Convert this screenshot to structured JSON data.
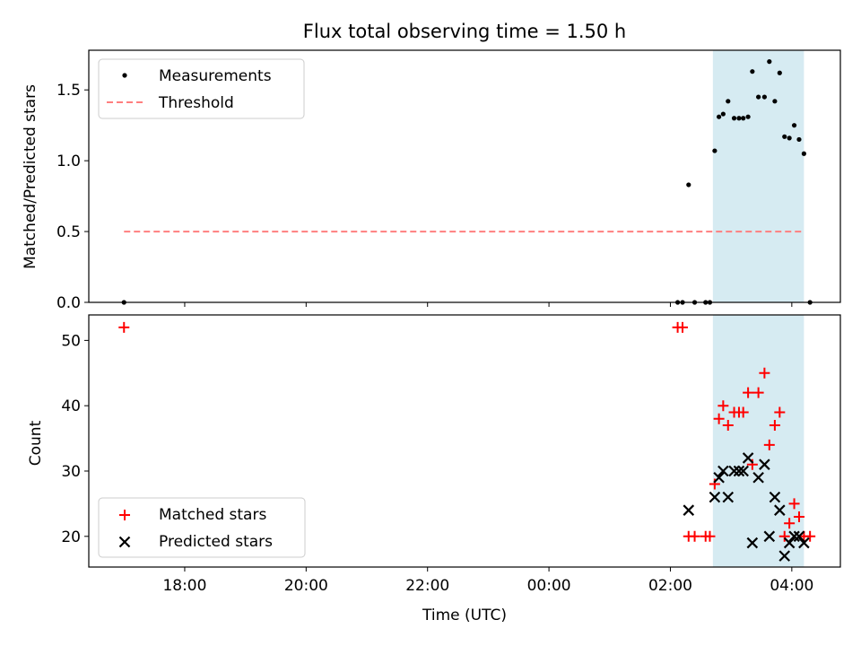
{
  "chart_data": [
    {
      "type": "scatter",
      "title": "Flux total observing time = 1.50 h",
      "ylabel": "Matched/Predicted stars",
      "xlim_hours": [
        16.42,
        28.8
      ],
      "ylim": [
        0,
        1.78
      ],
      "yticks": [
        0.0,
        0.5,
        1.0,
        1.5
      ],
      "ytick_labels": [
        "0.0",
        "0.5",
        "1.0",
        "1.5"
      ],
      "shaded_span_hours": [
        26.7,
        28.2
      ],
      "shade_color": "#add8e6",
      "legend_position": "upper left",
      "series": [
        {
          "name": "Measurements",
          "marker": "dot",
          "color": "#000000",
          "points": [
            [
              17.0,
              0.0
            ],
            [
              26.12,
              0.0
            ],
            [
              26.2,
              0.0
            ],
            [
              26.4,
              0.0
            ],
            [
              26.58,
              0.0
            ],
            [
              26.65,
              0.0
            ],
            [
              26.3,
              0.83
            ],
            [
              26.73,
              1.07
            ],
            [
              26.8,
              1.31
            ],
            [
              26.87,
              1.33
            ],
            [
              26.95,
              1.42
            ],
            [
              27.05,
              1.3
            ],
            [
              27.13,
              1.3
            ],
            [
              27.2,
              1.3
            ],
            [
              27.28,
              1.31
            ],
            [
              27.35,
              1.63
            ],
            [
              27.45,
              1.45
            ],
            [
              27.55,
              1.45
            ],
            [
              27.63,
              1.7
            ],
            [
              27.72,
              1.42
            ],
            [
              27.8,
              1.62
            ],
            [
              27.88,
              1.17
            ],
            [
              27.96,
              1.16
            ],
            [
              28.04,
              1.25
            ],
            [
              28.12,
              1.15
            ],
            [
              28.2,
              1.05
            ],
            [
              28.3,
              0.0
            ]
          ]
        },
        {
          "name": "Threshold",
          "style": "dashed-line",
          "color": "#ff7f7f",
          "x_hours": [
            17.0,
            28.2
          ],
          "y": [
            0.5,
            0.5
          ]
        }
      ]
    },
    {
      "type": "scatter",
      "ylabel": "Count",
      "xlabel": "Time (UTC)",
      "xlim_hours": [
        16.42,
        28.8
      ],
      "ylim": [
        15.3,
        53.9
      ],
      "yticks": [
        20,
        30,
        40,
        50
      ],
      "ytick_labels": [
        "20",
        "30",
        "40",
        "50"
      ],
      "xticks_hours": [
        18,
        20,
        22,
        24,
        26,
        28
      ],
      "xtick_labels": [
        "18:00",
        "20:00",
        "22:00",
        "00:00",
        "02:00",
        "04:00"
      ],
      "shaded_span_hours": [
        26.7,
        28.2
      ],
      "shade_color": "#add8e6",
      "legend_position": "lower left",
      "series": [
        {
          "name": "Matched stars",
          "marker": "plus",
          "color": "#ff0000",
          "points": [
            [
              17.0,
              52
            ],
            [
              26.12,
              52
            ],
            [
              26.2,
              52
            ],
            [
              26.3,
              20
            ],
            [
              26.4,
              20
            ],
            [
              26.58,
              20
            ],
            [
              26.65,
              20
            ],
            [
              26.73,
              28
            ],
            [
              26.8,
              38
            ],
            [
              26.87,
              40
            ],
            [
              26.95,
              37
            ],
            [
              27.05,
              39
            ],
            [
              27.13,
              39
            ],
            [
              27.2,
              39
            ],
            [
              27.28,
              42
            ],
            [
              27.35,
              31
            ],
            [
              27.45,
              42
            ],
            [
              27.55,
              45
            ],
            [
              27.63,
              34
            ],
            [
              27.72,
              37
            ],
            [
              27.8,
              39
            ],
            [
              27.88,
              20
            ],
            [
              27.96,
              22
            ],
            [
              28.04,
              25
            ],
            [
              28.12,
              23
            ],
            [
              28.2,
              20
            ],
            [
              28.3,
              20
            ]
          ]
        },
        {
          "name": "Predicted stars",
          "marker": "x",
          "color": "#000000",
          "points": [
            [
              26.3,
              24
            ],
            [
              26.73,
              26
            ],
            [
              26.8,
              29
            ],
            [
              26.87,
              30
            ],
            [
              26.95,
              26
            ],
            [
              27.05,
              30
            ],
            [
              27.13,
              30
            ],
            [
              27.2,
              30
            ],
            [
              27.28,
              32
            ],
            [
              27.35,
              19
            ],
            [
              27.45,
              29
            ],
            [
              27.55,
              31
            ],
            [
              27.63,
              20
            ],
            [
              27.72,
              26
            ],
            [
              27.8,
              24
            ],
            [
              27.88,
              17
            ],
            [
              27.96,
              19
            ],
            [
              28.04,
              20
            ],
            [
              28.12,
              20
            ],
            [
              28.2,
              19
            ]
          ]
        }
      ]
    }
  ]
}
